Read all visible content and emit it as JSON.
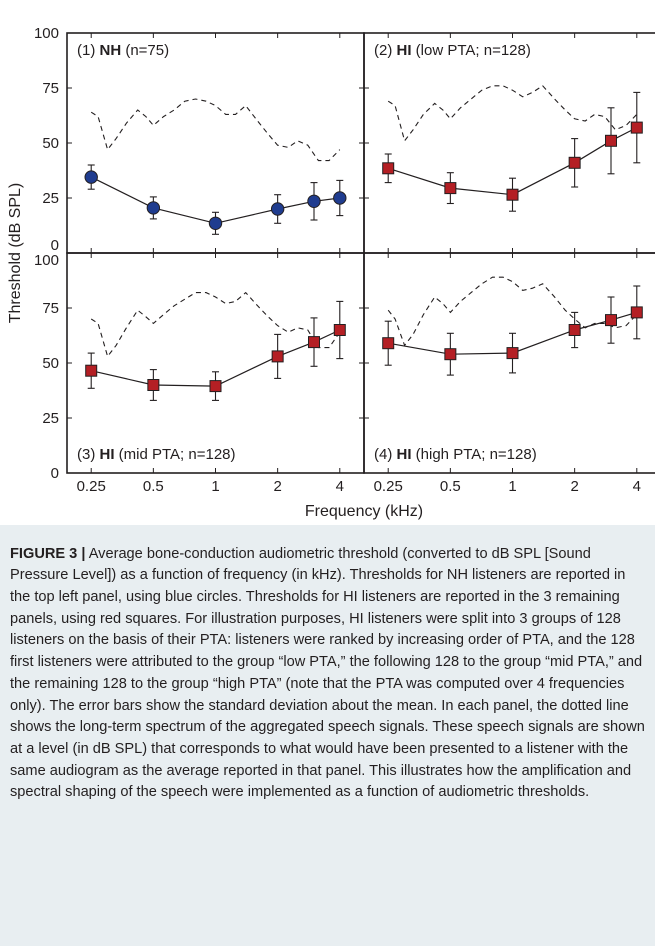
{
  "chart_data": {
    "type": "line",
    "xlabel": "Frequency (kHz)",
    "ylabel": "Threshold (dB SPL)",
    "xscale": "log",
    "x_ticks": [
      "0.25",
      "0.5",
      "1",
      "2",
      "4"
    ],
    "y_ticks": [
      "0",
      "25",
      "50",
      "75",
      "100"
    ],
    "ylim": [
      0,
      100
    ],
    "panels": [
      {
        "label_prefix": "(1) ",
        "label_bold": "NH",
        "label_suffix": " (n=75)",
        "marker": "circle",
        "marker_color": "#1f3c8f",
        "x": [
          0.25,
          0.5,
          1,
          2,
          3,
          4
        ],
        "y": [
          34.5,
          20.5,
          13.5,
          20,
          23.5,
          25
        ],
        "err": [
          5.5,
          5,
          5,
          6.5,
          8.5,
          8
        ],
        "speech_spectrum": {
          "x": [
            0.25,
            0.27,
            0.3,
            0.33,
            0.37,
            0.42,
            0.46,
            0.5,
            0.56,
            0.63,
            0.71,
            0.8,
            0.9,
            1.0,
            1.12,
            1.25,
            1.4,
            1.6,
            1.8,
            2.0,
            2.25,
            2.5,
            2.8,
            3.15,
            3.55,
            4.0
          ],
          "y": [
            64,
            62,
            47,
            52,
            59,
            65,
            62,
            58,
            62,
            65,
            69,
            70,
            69,
            67,
            63,
            63,
            67,
            60,
            54,
            49,
            48,
            51,
            49,
            42,
            42,
            47
          ]
        }
      },
      {
        "label_prefix": "(2) ",
        "label_bold": "HI",
        "label_suffix": " (low PTA; n=128)",
        "marker": "square",
        "marker_color": "#b41f24",
        "x": [
          0.25,
          0.5,
          1,
          2,
          3,
          4
        ],
        "y": [
          38.5,
          29.5,
          26.5,
          41,
          51,
          57
        ],
        "err": [
          6.5,
          7,
          7.5,
          11,
          15,
          16
        ],
        "speech_spectrum": {
          "x": [
            0.25,
            0.27,
            0.3,
            0.33,
            0.37,
            0.42,
            0.46,
            0.5,
            0.56,
            0.63,
            0.71,
            0.8,
            0.9,
            1.0,
            1.12,
            1.25,
            1.4,
            1.6,
            1.8,
            2.0,
            2.25,
            2.5,
            2.8,
            3.15,
            3.55,
            4.0
          ],
          "y": [
            69,
            67,
            51,
            56,
            63,
            68,
            65,
            61,
            66,
            70,
            74,
            76,
            76,
            74,
            71,
            73,
            76,
            70,
            65,
            61,
            60,
            63,
            62,
            56,
            58,
            63
          ]
        }
      },
      {
        "label_prefix": "(3) ",
        "label_bold": "HI",
        "label_suffix": " (mid PTA; n=128)",
        "marker": "square",
        "marker_color": "#b41f24",
        "x": [
          0.25,
          0.5,
          1,
          2,
          3,
          4
        ],
        "y": [
          46.5,
          40,
          39.5,
          53,
          59.5,
          65
        ],
        "err": [
          8,
          7,
          6.5,
          10,
          11,
          13
        ],
        "speech_spectrum": {
          "x": [
            0.25,
            0.27,
            0.3,
            0.33,
            0.37,
            0.42,
            0.46,
            0.5,
            0.56,
            0.63,
            0.71,
            0.8,
            0.9,
            1.0,
            1.12,
            1.25,
            1.4,
            1.6,
            1.8,
            2.0,
            2.25,
            2.5,
            2.8,
            3.15,
            3.55,
            4.0
          ],
          "y": [
            70,
            68,
            53,
            58,
            66,
            74,
            71,
            68,
            72,
            76,
            79,
            82,
            82,
            80,
            77,
            78,
            82,
            76,
            71,
            67,
            64,
            66,
            65,
            57,
            57,
            64
          ]
        }
      },
      {
        "label_prefix": "(4) ",
        "label_bold": "HI",
        "label_suffix": " (high PTA; n=128)",
        "marker": "square",
        "marker_color": "#b41f24",
        "x": [
          0.25,
          0.5,
          1,
          2,
          3,
          4
        ],
        "y": [
          59,
          54,
          54.5,
          65,
          69.5,
          73
        ],
        "err": [
          10,
          9.5,
          9,
          8,
          10.5,
          12
        ],
        "speech_spectrum": {
          "x": [
            0.25,
            0.27,
            0.3,
            0.33,
            0.37,
            0.42,
            0.46,
            0.5,
            0.56,
            0.63,
            0.71,
            0.8,
            0.9,
            1.0,
            1.12,
            1.25,
            1.4,
            1.6,
            1.8,
            2.0,
            2.25,
            2.5,
            2.8,
            3.15,
            3.55,
            4.0
          ],
          "y": [
            74,
            70,
            58,
            63,
            72,
            80,
            77,
            73,
            78,
            82,
            86,
            89,
            89,
            87,
            83,
            84,
            86,
            80,
            74,
            70,
            66,
            68,
            68,
            66,
            67,
            72
          ]
        }
      }
    ]
  },
  "caption": {
    "label": "FIGURE 3 |",
    "text": " Average bone-conduction audiometric threshold (converted to dB SPL [Sound Pressure Level]) as a function of frequency (in kHz). Thresholds for NH listeners are reported in the top left panel, using blue circles. Thresholds for HI listeners are reported in the 3 remaining panels, using red squares. For illustration purposes, HI listeners were split into 3 groups of 128 listeners on the basis of their PTA: listeners were ranked by increasing order of PTA, and the 128 first listeners were attributed to the group “low PTA,” the following 128 to the group “mid PTA,” and the remaining 128 to the group “high PTA” (note that the PTA was computed over 4 frequencies only). The error bars show the standard deviation about the mean. In each panel, the dotted line shows the long-term spectrum of the aggregated speech signals. These speech signals are shown at a level (in dB SPL) that corresponds to what would have been presented to a listener with the same audiogram as the average reported in that panel. This illustrates how the amplification and spectral shaping of the speech were implemented as a function of audiometric thresholds."
  }
}
